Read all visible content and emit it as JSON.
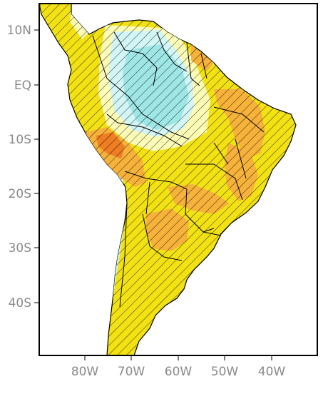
{
  "map": {
    "lat_labels": [
      "10N",
      "EQ",
      "10S",
      "20S",
      "30S",
      "40S"
    ],
    "lon_labels": [
      "80W",
      "70W",
      "60W",
      "50W",
      "40W"
    ],
    "colors": {
      "land_yellow": "#f3e213",
      "light_yellow": "#fdfcb6",
      "pale_cyan": "#d2f5f5",
      "cyan": "#9fe7e6",
      "orange": "#f6b23a",
      "dark_orange": "#ee7d23",
      "ocean": "#ffffff",
      "border": "#000000",
      "hatch": "#000000",
      "tick_label": "#8a8a8a"
    }
  }
}
